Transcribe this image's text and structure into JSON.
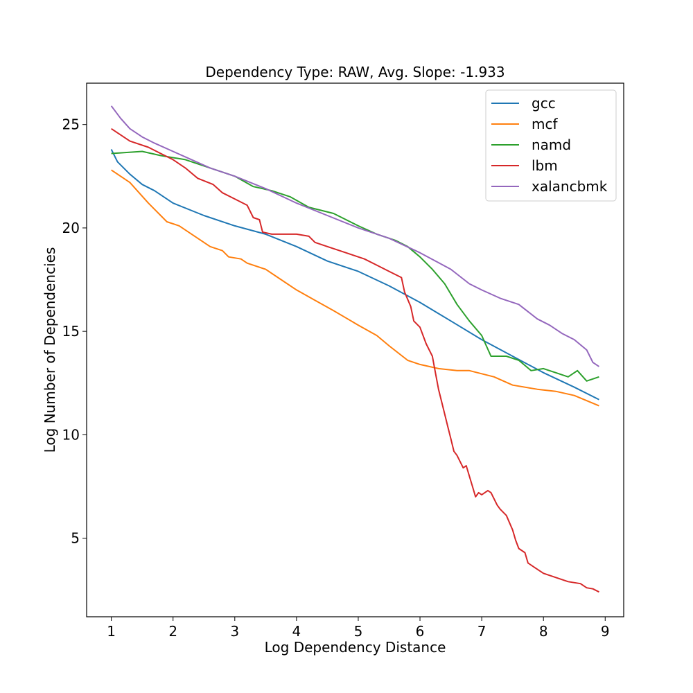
{
  "chart_data": {
    "type": "line",
    "title": "Dependency Type: RAW, Avg. Slope: -1.933",
    "xlabel": "Log Dependency Distance",
    "ylabel": "Log Number of Dependencies",
    "xlim": [
      0.6,
      9.3
    ],
    "ylim": [
      1.2,
      27
    ],
    "xticks": [
      1,
      2,
      3,
      4,
      5,
      6,
      7,
      8,
      9
    ],
    "yticks": [
      5,
      10,
      15,
      20,
      25
    ],
    "grid": false,
    "legend_position": "top-right",
    "series": [
      {
        "name": "gcc",
        "color": "#1f77b4",
        "points": [
          [
            1.0,
            23.8
          ],
          [
            1.1,
            23.2
          ],
          [
            1.3,
            22.6
          ],
          [
            1.5,
            22.1
          ],
          [
            1.7,
            21.8
          ],
          [
            2.0,
            21.2
          ],
          [
            2.5,
            20.6
          ],
          [
            3.0,
            20.1
          ],
          [
            3.5,
            19.7
          ],
          [
            4.0,
            19.1
          ],
          [
            4.5,
            18.4
          ],
          [
            5.0,
            17.9
          ],
          [
            5.5,
            17.2
          ],
          [
            6.0,
            16.4
          ],
          [
            6.5,
            15.5
          ],
          [
            7.0,
            14.6
          ],
          [
            7.5,
            13.8
          ],
          [
            8.0,
            13.0
          ],
          [
            8.5,
            12.3
          ],
          [
            8.9,
            11.7
          ]
        ]
      },
      {
        "name": "mcf",
        "color": "#ff7f0e",
        "points": [
          [
            1.0,
            22.8
          ],
          [
            1.3,
            22.2
          ],
          [
            1.6,
            21.2
          ],
          [
            1.9,
            20.3
          ],
          [
            2.1,
            20.1
          ],
          [
            2.4,
            19.5
          ],
          [
            2.6,
            19.1
          ],
          [
            2.8,
            18.9
          ],
          [
            2.9,
            18.6
          ],
          [
            3.1,
            18.5
          ],
          [
            3.2,
            18.3
          ],
          [
            3.5,
            18.0
          ],
          [
            3.7,
            17.6
          ],
          [
            4.0,
            17.0
          ],
          [
            4.3,
            16.5
          ],
          [
            4.6,
            16.0
          ],
          [
            5.0,
            15.3
          ],
          [
            5.3,
            14.8
          ],
          [
            5.5,
            14.3
          ],
          [
            5.8,
            13.6
          ],
          [
            6.0,
            13.4
          ],
          [
            6.3,
            13.2
          ],
          [
            6.6,
            13.1
          ],
          [
            6.8,
            13.1
          ],
          [
            7.2,
            12.8
          ],
          [
            7.5,
            12.4
          ],
          [
            7.9,
            12.2
          ],
          [
            8.2,
            12.1
          ],
          [
            8.5,
            11.9
          ],
          [
            8.9,
            11.4
          ]
        ]
      },
      {
        "name": "namd",
        "color": "#2ca02c",
        "points": [
          [
            1.0,
            23.6
          ],
          [
            1.5,
            23.7
          ],
          [
            1.8,
            23.5
          ],
          [
            2.2,
            23.3
          ],
          [
            2.5,
            23.0
          ],
          [
            3.0,
            22.5
          ],
          [
            3.3,
            22.0
          ],
          [
            3.6,
            21.8
          ],
          [
            3.9,
            21.5
          ],
          [
            4.2,
            21.0
          ],
          [
            4.6,
            20.7
          ],
          [
            5.0,
            20.1
          ],
          [
            5.3,
            19.7
          ],
          [
            5.6,
            19.4
          ],
          [
            5.8,
            19.1
          ],
          [
            6.0,
            18.6
          ],
          [
            6.2,
            18.0
          ],
          [
            6.4,
            17.3
          ],
          [
            6.6,
            16.3
          ],
          [
            6.8,
            15.5
          ],
          [
            7.0,
            14.8
          ],
          [
            7.15,
            13.8
          ],
          [
            7.4,
            13.8
          ],
          [
            7.6,
            13.6
          ],
          [
            7.8,
            13.1
          ],
          [
            8.0,
            13.2
          ],
          [
            8.2,
            13.0
          ],
          [
            8.4,
            12.8
          ],
          [
            8.55,
            13.1
          ],
          [
            8.7,
            12.6
          ],
          [
            8.8,
            12.7
          ],
          [
            8.9,
            12.8
          ]
        ]
      },
      {
        "name": "lbm",
        "color": "#d62728",
        "points": [
          [
            1.0,
            24.8
          ],
          [
            1.3,
            24.2
          ],
          [
            1.6,
            23.9
          ],
          [
            1.8,
            23.6
          ],
          [
            2.0,
            23.3
          ],
          [
            2.2,
            22.9
          ],
          [
            2.4,
            22.4
          ],
          [
            2.65,
            22.1
          ],
          [
            2.8,
            21.7
          ],
          [
            3.0,
            21.4
          ],
          [
            3.2,
            21.1
          ],
          [
            3.3,
            20.5
          ],
          [
            3.4,
            20.4
          ],
          [
            3.45,
            19.8
          ],
          [
            3.6,
            19.7
          ],
          [
            3.8,
            19.7
          ],
          [
            4.0,
            19.7
          ],
          [
            4.2,
            19.6
          ],
          [
            4.3,
            19.3
          ],
          [
            4.5,
            19.1
          ],
          [
            4.8,
            18.8
          ],
          [
            4.9,
            18.7
          ],
          [
            5.1,
            18.5
          ],
          [
            5.3,
            18.2
          ],
          [
            5.5,
            17.9
          ],
          [
            5.7,
            17.6
          ],
          [
            5.75,
            16.9
          ],
          [
            5.85,
            16.2
          ],
          [
            5.9,
            15.5
          ],
          [
            6.0,
            15.2
          ],
          [
            6.1,
            14.4
          ],
          [
            6.2,
            13.8
          ],
          [
            6.25,
            13.0
          ],
          [
            6.3,
            12.2
          ],
          [
            6.4,
            11.0
          ],
          [
            6.45,
            10.4
          ],
          [
            6.5,
            9.8
          ],
          [
            6.55,
            9.2
          ],
          [
            6.6,
            9.0
          ],
          [
            6.7,
            8.4
          ],
          [
            6.75,
            8.5
          ],
          [
            6.8,
            8.0
          ],
          [
            6.85,
            7.5
          ],
          [
            6.9,
            7.0
          ],
          [
            6.95,
            7.2
          ],
          [
            7.0,
            7.1
          ],
          [
            7.1,
            7.3
          ],
          [
            7.15,
            7.2
          ],
          [
            7.25,
            6.6
          ],
          [
            7.3,
            6.4
          ],
          [
            7.4,
            6.1
          ],
          [
            7.5,
            5.4
          ],
          [
            7.55,
            4.9
          ],
          [
            7.6,
            4.5
          ],
          [
            7.7,
            4.3
          ],
          [
            7.75,
            3.8
          ],
          [
            7.85,
            3.6
          ],
          [
            8.0,
            3.3
          ],
          [
            8.2,
            3.1
          ],
          [
            8.4,
            2.9
          ],
          [
            8.6,
            2.8
          ],
          [
            8.7,
            2.6
          ],
          [
            8.8,
            2.55
          ],
          [
            8.9,
            2.4
          ]
        ]
      },
      {
        "name": "xalancbmk",
        "color": "#9467bd",
        "points": [
          [
            1.0,
            25.9
          ],
          [
            1.15,
            25.3
          ],
          [
            1.3,
            24.8
          ],
          [
            1.5,
            24.4
          ],
          [
            1.7,
            24.1
          ],
          [
            2.0,
            23.7
          ],
          [
            2.3,
            23.3
          ],
          [
            2.6,
            22.9
          ],
          [
            3.0,
            22.5
          ],
          [
            3.5,
            21.9
          ],
          [
            4.0,
            21.2
          ],
          [
            4.5,
            20.6
          ],
          [
            5.0,
            20.0
          ],
          [
            5.5,
            19.5
          ],
          [
            6.0,
            18.8
          ],
          [
            6.5,
            18.0
          ],
          [
            6.8,
            17.3
          ],
          [
            7.0,
            17.0
          ],
          [
            7.3,
            16.6
          ],
          [
            7.6,
            16.3
          ],
          [
            7.9,
            15.6
          ],
          [
            8.1,
            15.3
          ],
          [
            8.3,
            14.9
          ],
          [
            8.5,
            14.6
          ],
          [
            8.7,
            14.1
          ],
          [
            8.8,
            13.5
          ],
          [
            8.9,
            13.3
          ]
        ]
      }
    ]
  }
}
